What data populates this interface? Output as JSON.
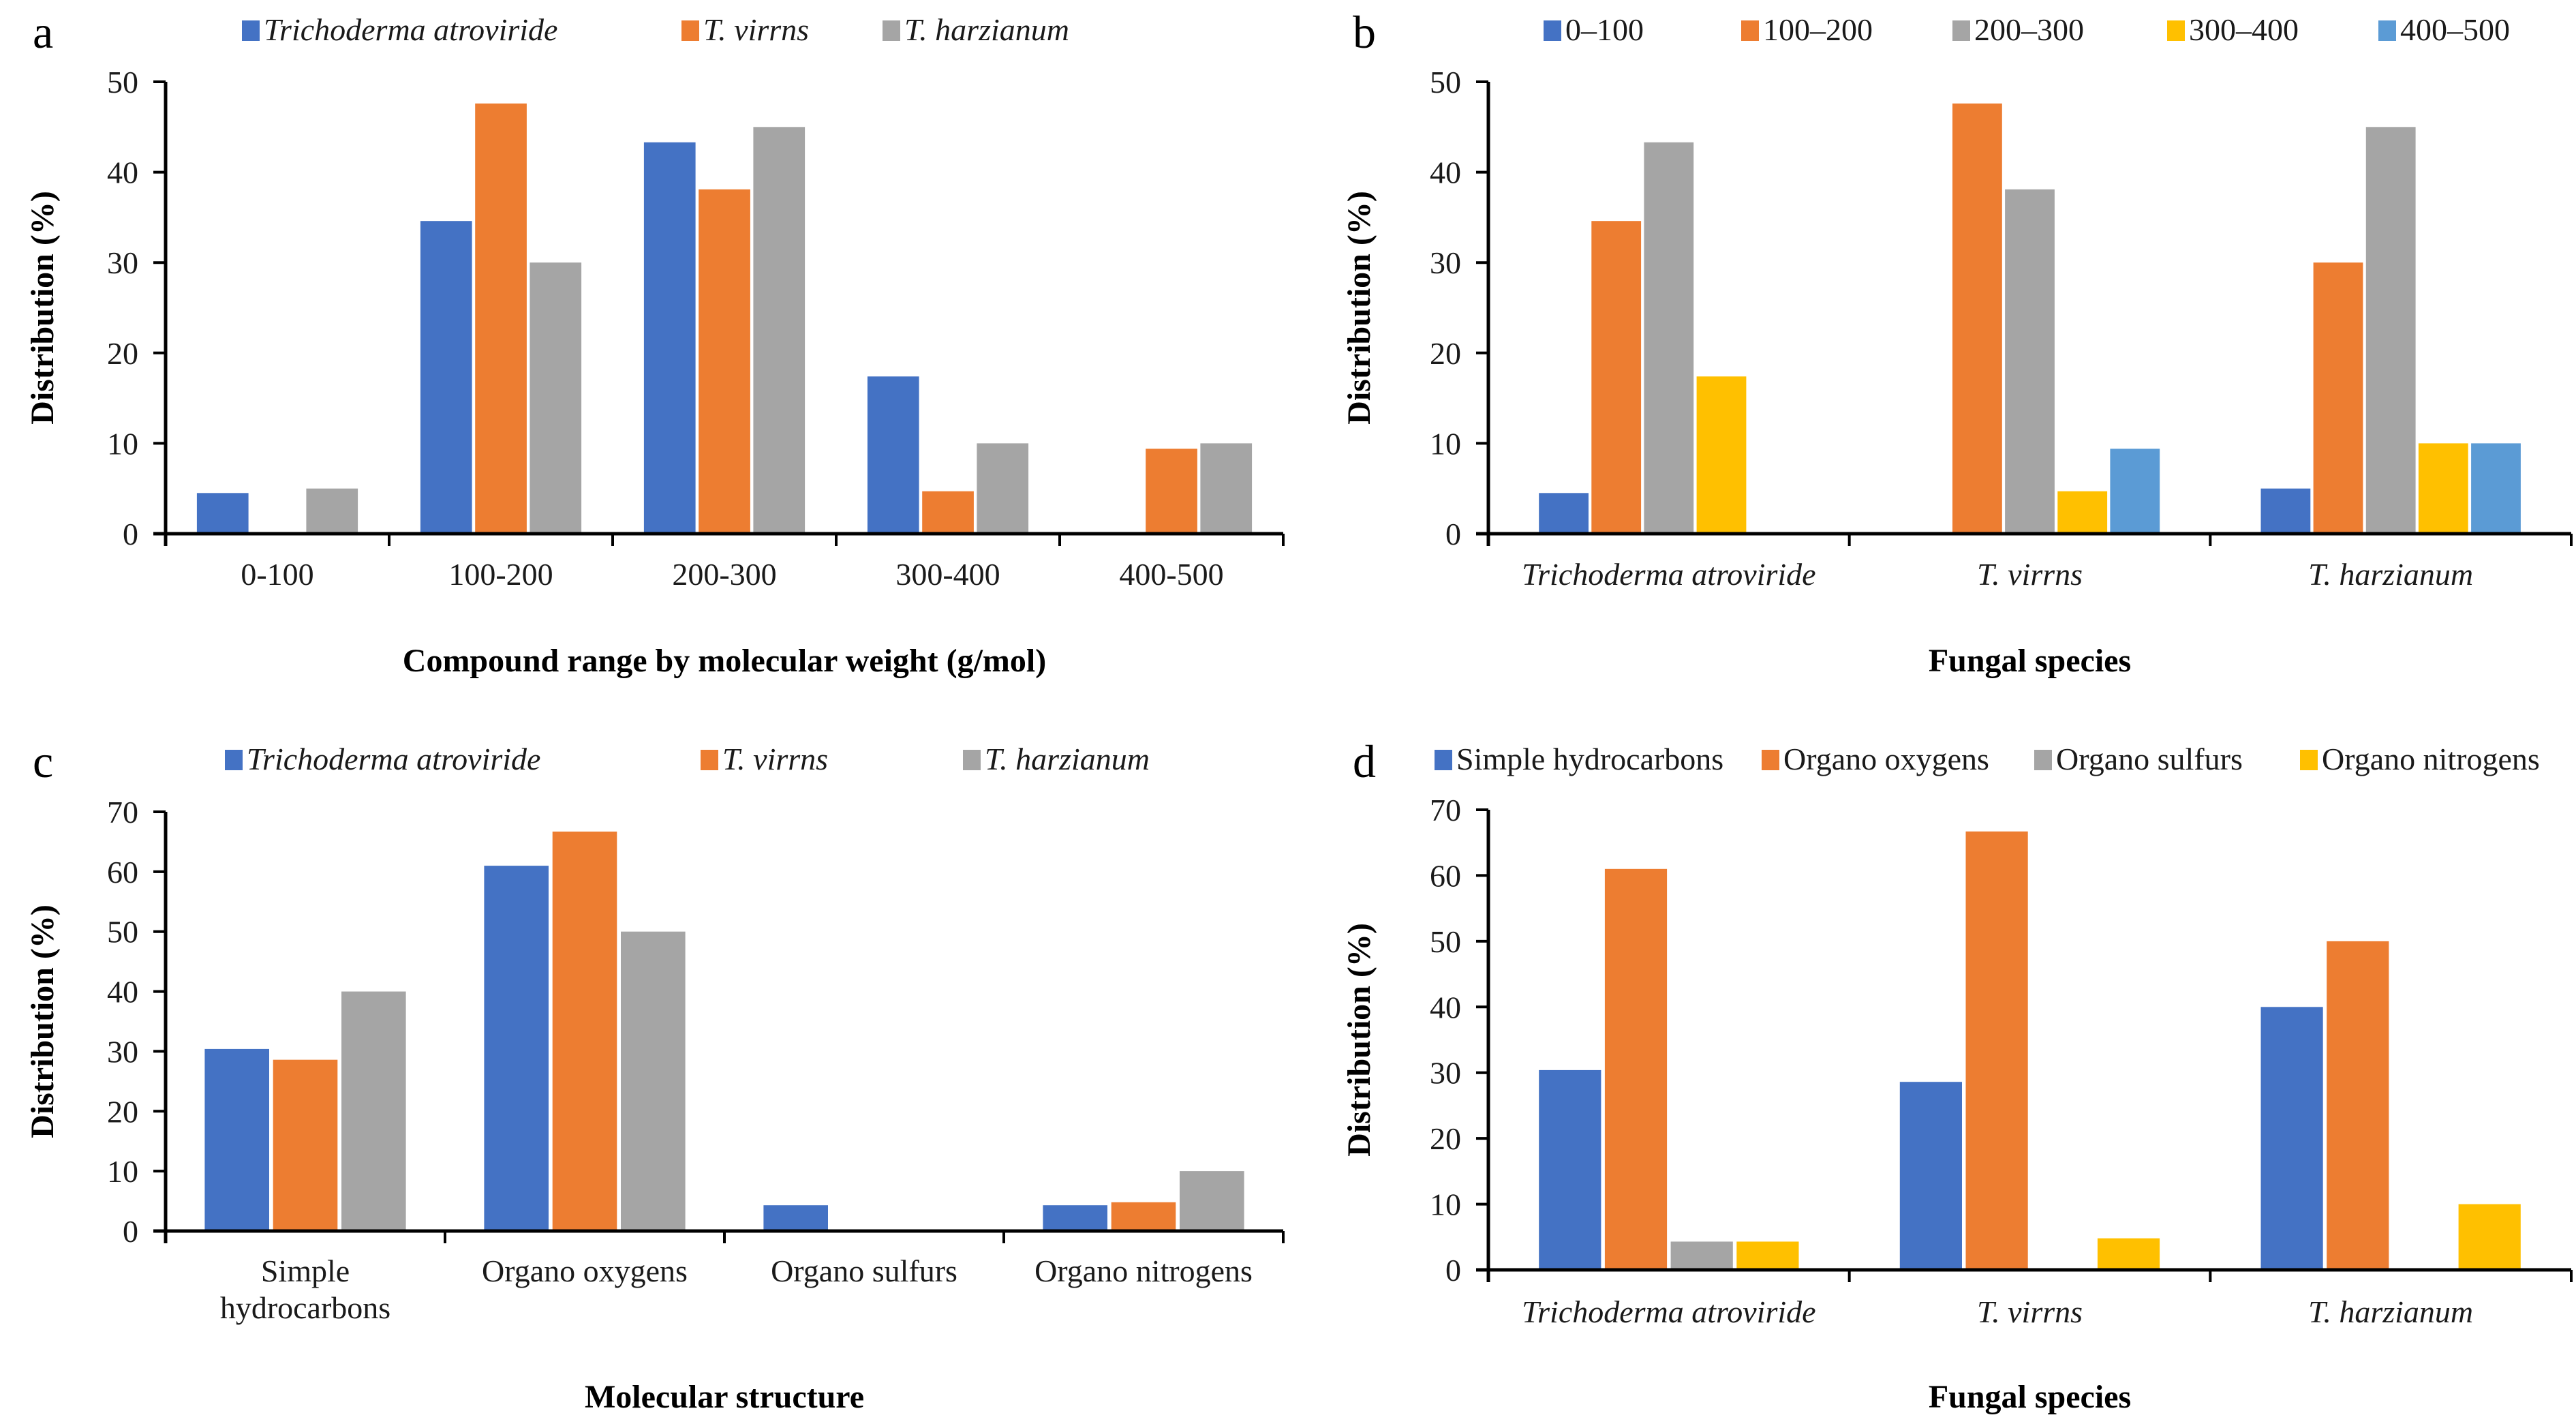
{
  "figure": {
    "colors": {
      "blue": "#4472C4",
      "orange": "#ED7D31",
      "gray": "#A5A5A5",
      "yellow": "#FFC000",
      "lightblue": "#5B9BD5"
    }
  },
  "chart_data": [
    {
      "panel": "a",
      "type": "bar",
      "title": "",
      "xlabel": "Compound range by molecular weight (g/mol)",
      "ylabel": "Distribution (%)",
      "ylim": [
        0,
        50
      ],
      "yticks": [
        0,
        10,
        20,
        30,
        40,
        50
      ],
      "categories": [
        "0-100",
        "100-200",
        "200-300",
        "300-400",
        "400-500"
      ],
      "category_italic": false,
      "legend_position": "top",
      "series": [
        {
          "name": "Trichoderma atroviride",
          "italic": true,
          "color": "#4472C4",
          "values": [
            4.5,
            34.6,
            43.3,
            17.4,
            0
          ]
        },
        {
          "name": "T. virrns",
          "italic": true,
          "color": "#ED7D31",
          "values": [
            0,
            47.6,
            38.1,
            4.7,
            9.4
          ]
        },
        {
          "name": "T. harzianum",
          "italic": true,
          "color": "#A5A5A5",
          "values": [
            5.0,
            30.0,
            45.0,
            10.0,
            10.0
          ]
        }
      ]
    },
    {
      "panel": "b",
      "type": "bar",
      "title": "",
      "xlabel": "Fungal species",
      "ylabel": "Distribution (%)",
      "ylim": [
        0,
        50
      ],
      "yticks": [
        0,
        10,
        20,
        30,
        40,
        50
      ],
      "categories": [
        "Trichoderma atroviride",
        "T. virrns",
        "T. harzianum"
      ],
      "category_italic": true,
      "legend_position": "top",
      "series": [
        {
          "name": "0–100",
          "italic": false,
          "color": "#4472C4",
          "values": [
            4.5,
            0,
            5.0
          ]
        },
        {
          "name": "100–200",
          "italic": false,
          "color": "#ED7D31",
          "values": [
            34.6,
            47.6,
            30.0
          ]
        },
        {
          "name": "200–300",
          "italic": false,
          "color": "#A5A5A5",
          "values": [
            43.3,
            38.1,
            45.0
          ]
        },
        {
          "name": "300–400",
          "italic": false,
          "color": "#FFC000",
          "values": [
            17.4,
            4.7,
            10.0
          ]
        },
        {
          "name": "400–500",
          "italic": false,
          "color": "#5B9BD5",
          "values": [
            0,
            9.4,
            10.0
          ]
        }
      ]
    },
    {
      "panel": "c",
      "type": "bar",
      "title": "",
      "xlabel": "Molecular structure",
      "ylabel": "Distribution (%)",
      "ylim": [
        0,
        70
      ],
      "yticks": [
        0,
        10,
        20,
        30,
        40,
        50,
        60,
        70
      ],
      "categories": [
        "Simple hydrocarbons",
        "Organo oxygens",
        "Organo sulfurs",
        "Organo nitrogens"
      ],
      "category_lines": [
        [
          "Simple",
          "hydrocarbons"
        ],
        [
          "Organo oxygens"
        ],
        [
          "Organo sulfurs"
        ],
        [
          "Organo nitrogens"
        ]
      ],
      "category_italic": false,
      "legend_position": "top",
      "series": [
        {
          "name": "Trichoderma atroviride",
          "italic": true,
          "color": "#4472C4",
          "values": [
            30.4,
            61.0,
            4.3,
            4.3
          ]
        },
        {
          "name": "T. virrns",
          "italic": true,
          "color": "#ED7D31",
          "values": [
            28.6,
            66.7,
            0,
            4.8
          ]
        },
        {
          "name": "T. harzianum",
          "italic": true,
          "color": "#A5A5A5",
          "values": [
            40.0,
            50.0,
            0,
            10.0
          ]
        }
      ]
    },
    {
      "panel": "d",
      "type": "bar",
      "title": "",
      "xlabel": "Fungal species",
      "ylabel": "Distribution (%)",
      "ylim": [
        0,
        70
      ],
      "yticks": [
        0,
        10,
        20,
        30,
        40,
        50,
        60,
        70
      ],
      "categories": [
        "Trichoderma atroviride",
        "T. virrns",
        "T. harzianum"
      ],
      "category_italic": true,
      "legend_position": "top",
      "series": [
        {
          "name": "Simple hydrocarbons",
          "italic": false,
          "color": "#4472C4",
          "values": [
            30.4,
            28.6,
            40.0
          ]
        },
        {
          "name": "Organo oxygens",
          "italic": false,
          "color": "#ED7D31",
          "values": [
            61.0,
            66.7,
            50.0
          ]
        },
        {
          "name": "Organo sulfurs",
          "italic": false,
          "color": "#A5A5A5",
          "values": [
            4.3,
            0,
            0
          ]
        },
        {
          "name": "Organo nitrogens",
          "italic": false,
          "color": "#FFC000",
          "values": [
            4.3,
            4.8,
            10.0
          ]
        }
      ]
    }
  ]
}
